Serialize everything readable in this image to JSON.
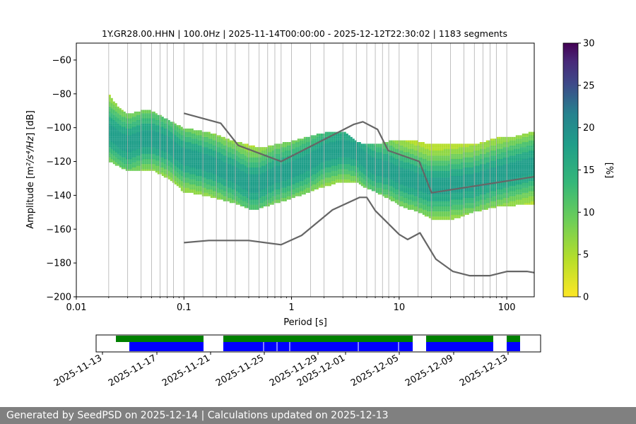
{
  "chart_data": {
    "type": "heatmap",
    "title": "1Y.GR28.00.HHN | 100.0Hz | 2025-11-14T00:00:00 - 2025-12-12T22:30:02 | 1183 segments",
    "xlabel": "Period [s]",
    "ylabel": "Amplitude [m²/s⁴/Hz] [dB]",
    "x_scale": "log",
    "xlim": [
      0.01,
      180
    ],
    "ylim": [
      -200,
      -50
    ],
    "x_ticks": [
      0.01,
      0.1,
      1,
      10,
      100
    ],
    "x_tick_labels": [
      "0.01",
      "0.1",
      "1",
      "10",
      "100"
    ],
    "y_ticks": [
      -200,
      -180,
      -160,
      -140,
      -120,
      -100,
      -80,
      -60
    ],
    "y_tick_labels": [
      "−200",
      "−180",
      "−160",
      "−140",
      "−120",
      "−100",
      "−80",
      "−60"
    ],
    "grid": "vertical lines at PSD period bins",
    "colorbar": {
      "label": "[%]",
      "range": [
        0,
        30
      ],
      "ticks": [
        0,
        5,
        10,
        15,
        20,
        25,
        30
      ],
      "colormap": "viridis (reversed)"
    },
    "density_mode": {
      "period": [
        0.02,
        0.025,
        0.03,
        0.04,
        0.05,
        0.07,
        0.1,
        0.15,
        0.2,
        0.3,
        0.4,
        0.5,
        0.7,
        1.0,
        1.5,
        2.0,
        3.0,
        4.0,
        5.0,
        6.0,
        8.0,
        10,
        15,
        20,
        30,
        50,
        80,
        120,
        180
      ],
      "mode_db": [
        -102,
        -107,
        -110,
        -107,
        -106,
        -110,
        -117,
        -120,
        -123,
        -128,
        -133,
        -133,
        -128,
        -125,
        -120,
        -115,
        -112,
        -114,
        -120,
        -123,
        -125,
        -128,
        -132,
        -135,
        -134,
        -132,
        -128,
        -125,
        -122
      ],
      "p_low_db": [
        -120,
        -123,
        -126,
        -125,
        -125,
        -130,
        -138,
        -140,
        -142,
        -145,
        -148,
        -148,
        -145,
        -142,
        -138,
        -135,
        -132,
        -132,
        -136,
        -138,
        -142,
        -146,
        -150,
        -154,
        -155,
        -150,
        -147,
        -146,
        -145
      ],
      "p_high_db": [
        -80,
        -88,
        -92,
        -90,
        -90,
        -95,
        -100,
        -102,
        -104,
        -108,
        -110,
        -112,
        -110,
        -108,
        -105,
        -103,
        -102,
        -108,
        -110,
        -110,
        -108,
        -108,
        -108,
        -110,
        -110,
        -110,
        -106,
        -105,
        -102
      ]
    },
    "series": [
      {
        "name": "",
        "color": "#666666",
        "x": [
          0.1,
          0.22,
          0.32,
          0.8,
          3.8,
          4.6,
          6.3,
          7.9,
          15.4,
          20,
          180
        ],
        "y": [
          -91.5,
          -97.4,
          -110.5,
          -120,
          -98,
          -96.5,
          -101,
          -113.5,
          -120,
          -138.5,
          -129
        ]
      },
      {
        "name": "",
        "color": "#666666",
        "x": [
          0.1,
          0.17,
          0.4,
          0.8,
          1.24,
          2.4,
          4.3,
          5.0,
          6.0,
          10,
          12,
          15.6,
          21.9,
          31.6,
          45,
          70,
          101,
          154,
          180
        ],
        "y": [
          -168,
          -166.7,
          -166.7,
          -169.2,
          -163.7,
          -148.6,
          -141.2,
          -141.2,
          -149.1,
          -163.1,
          -166.1,
          -162.2,
          -177.7,
          -185,
          -187.5,
          -187.5,
          -185,
          -185,
          -185.7
        ]
      }
    ]
  },
  "timeline": {
    "date_labels": [
      "2025-11-13",
      "2025-11-17",
      "2025-11-21",
      "2025-11-25",
      "2025-11-29",
      "2025-12-01",
      "2025-12-05",
      "2025-12-09",
      "2025-12-13"
    ],
    "coverage_color": "#008000",
    "data_color": "#0000ff"
  },
  "footer": {
    "text": "Generated by SeedPSD on 2025-12-14 | Calculations updated on 2025-12-13"
  }
}
